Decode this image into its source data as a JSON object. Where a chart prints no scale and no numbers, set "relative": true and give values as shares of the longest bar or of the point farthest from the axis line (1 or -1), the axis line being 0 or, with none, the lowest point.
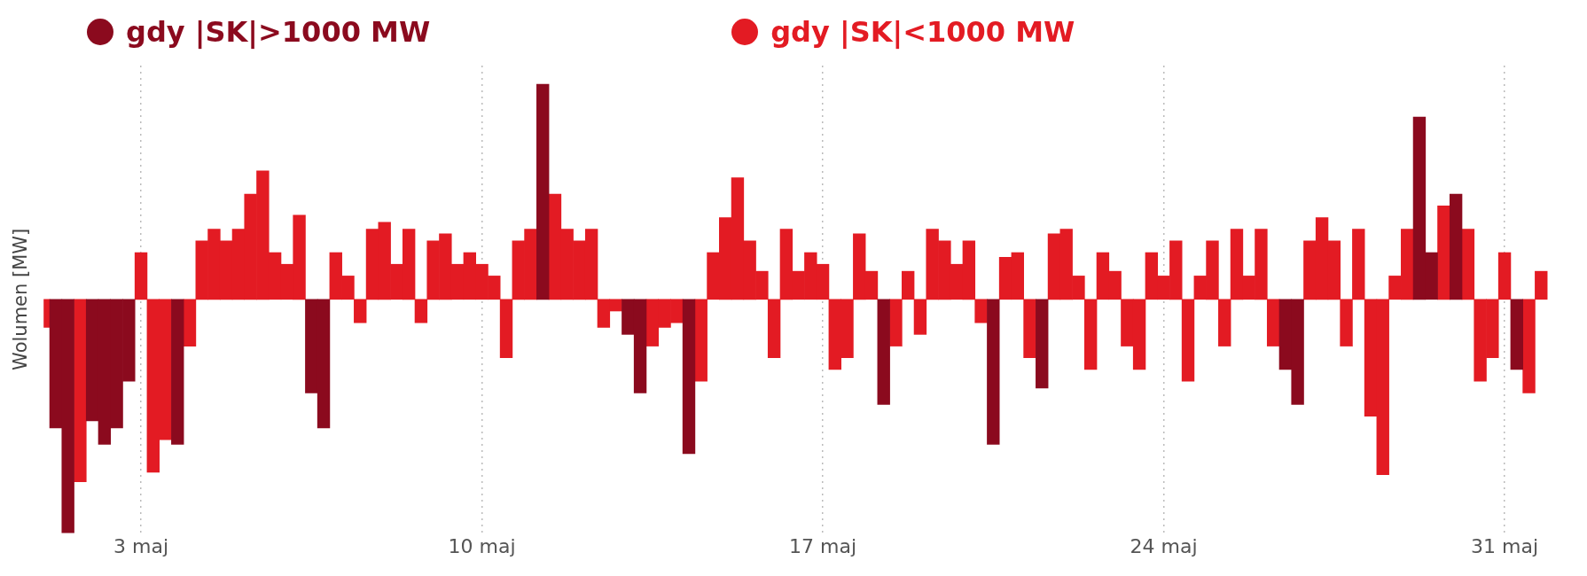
{
  "chart_data": {
    "type": "bar",
    "relative": true,
    "ylabel": "Wolumen [MW]",
    "legend": "top",
    "grid": "x",
    "xlim": [
      1,
      32
    ],
    "xticks": [
      {
        "value": 3,
        "label": "3 maj"
      },
      {
        "value": 10,
        "label": "10 maj"
      },
      {
        "value": 17,
        "label": "17 maj"
      },
      {
        "value": 24,
        "label": "24 maj"
      },
      {
        "value": 31,
        "label": "31 maj"
      }
    ],
    "x": [
      1,
      1.25,
      1.5,
      1.75,
      2,
      2.25,
      2.5,
      2.75,
      3,
      3.25,
      3.5,
      3.75,
      4,
      4.25,
      4.5,
      4.75,
      5,
      5.25,
      5.5,
      5.75,
      6,
      6.25,
      6.5,
      6.75,
      7,
      7.25,
      7.5,
      7.75,
      8,
      8.25,
      8.5,
      8.75,
      9,
      9.25,
      9.5,
      9.75,
      10,
      10.25,
      10.5,
      10.75,
      11,
      11.25,
      11.5,
      11.75,
      12,
      12.25,
      12.5,
      12.75,
      13,
      13.25,
      13.5,
      13.75,
      14,
      14.25,
      14.5,
      14.75,
      15,
      15.25,
      15.5,
      15.75,
      16,
      16.25,
      16.5,
      16.75,
      17,
      17.25,
      17.5,
      17.75,
      18,
      18.25,
      18.5,
      18.75,
      19,
      19.25,
      19.5,
      19.75,
      20,
      20.25,
      20.5,
      20.75,
      21,
      21.25,
      21.5,
      21.75,
      22,
      22.25,
      22.5,
      22.75,
      23,
      23.25,
      23.5,
      23.75,
      24,
      24.25,
      24.5,
      24.75,
      25,
      25.25,
      25.5,
      25.75,
      26,
      26.25,
      26.5,
      26.75,
      27,
      27.25,
      27.5,
      27.75,
      28,
      28.25,
      28.5,
      28.75,
      29,
      29.25,
      29.5,
      29.75,
      30,
      30.25,
      30.5,
      30.75,
      31,
      31.25,
      31.5,
      31.75
    ],
    "series": [
      {
        "name": "gdy |SK|>1000 MW",
        "color": "#8b0a1e",
        "values": [
          null,
          -0.55,
          -1.0,
          null,
          -0.52,
          -0.62,
          -0.55,
          -0.35,
          null,
          null,
          null,
          -0.62,
          null,
          null,
          null,
          null,
          null,
          null,
          null,
          null,
          null,
          null,
          -0.4,
          -0.55,
          null,
          null,
          null,
          null,
          null,
          null,
          null,
          null,
          null,
          null,
          null,
          null,
          null,
          null,
          null,
          null,
          null,
          0.92,
          null,
          null,
          null,
          null,
          null,
          null,
          -0.15,
          -0.4,
          null,
          null,
          null,
          -0.66,
          null,
          null,
          null,
          null,
          null,
          null,
          null,
          null,
          null,
          null,
          null,
          null,
          null,
          null,
          null,
          -0.45,
          null,
          null,
          null,
          null,
          null,
          null,
          null,
          null,
          -0.62,
          null,
          null,
          null,
          -0.38,
          null,
          null,
          null,
          null,
          null,
          null,
          null,
          null,
          null,
          null,
          null,
          null,
          null,
          null,
          null,
          null,
          null,
          null,
          null,
          -0.3,
          -0.45,
          null,
          null,
          null,
          null,
          null,
          null,
          null,
          null,
          null,
          0.78,
          0.2,
          null,
          0.45,
          null,
          null,
          null,
          null,
          -0.3,
          null,
          null
        ]
      },
      {
        "name": "gdy |SK|<1000 MW",
        "color": "#e31b23",
        "values": [
          -0.12,
          null,
          null,
          -0.78,
          null,
          null,
          null,
          null,
          0.2,
          -0.74,
          -0.6,
          null,
          -0.2,
          0.25,
          0.3,
          0.25,
          0.3,
          0.45,
          0.55,
          0.2,
          0.15,
          0.36,
          null,
          null,
          0.2,
          0.1,
          -0.1,
          0.3,
          0.33,
          0.15,
          0.3,
          -0.1,
          0.25,
          0.28,
          0.15,
          0.2,
          0.15,
          0.1,
          -0.25,
          0.25,
          0.3,
          null,
          0.45,
          0.3,
          0.25,
          0.3,
          -0.12,
          -0.05,
          null,
          null,
          -0.2,
          -0.12,
          -0.1,
          null,
          -0.35,
          0.2,
          0.35,
          0.52,
          0.25,
          0.12,
          -0.25,
          0.3,
          0.12,
          0.2,
          0.15,
          -0.3,
          -0.25,
          0.28,
          0.12,
          null,
          -0.2,
          0.12,
          -0.15,
          0.3,
          0.25,
          0.15,
          0.25,
          -0.1,
          null,
          0.18,
          0.2,
          -0.25,
          null,
          0.28,
          0.3,
          0.1,
          -0.3,
          0.2,
          0.12,
          -0.2,
          -0.3,
          0.2,
          0.1,
          0.25,
          -0.35,
          0.1,
          0.25,
          -0.2,
          0.3,
          0.1,
          0.3,
          -0.2,
          null,
          null,
          0.25,
          0.35,
          0.25,
          -0.2,
          0.3,
          -0.5,
          -0.75,
          0.1,
          0.3,
          null,
          null,
          0.4,
          null,
          0.3,
          -0.35,
          -0.25,
          0.2,
          null,
          -0.4,
          0.12
        ]
      }
    ]
  }
}
